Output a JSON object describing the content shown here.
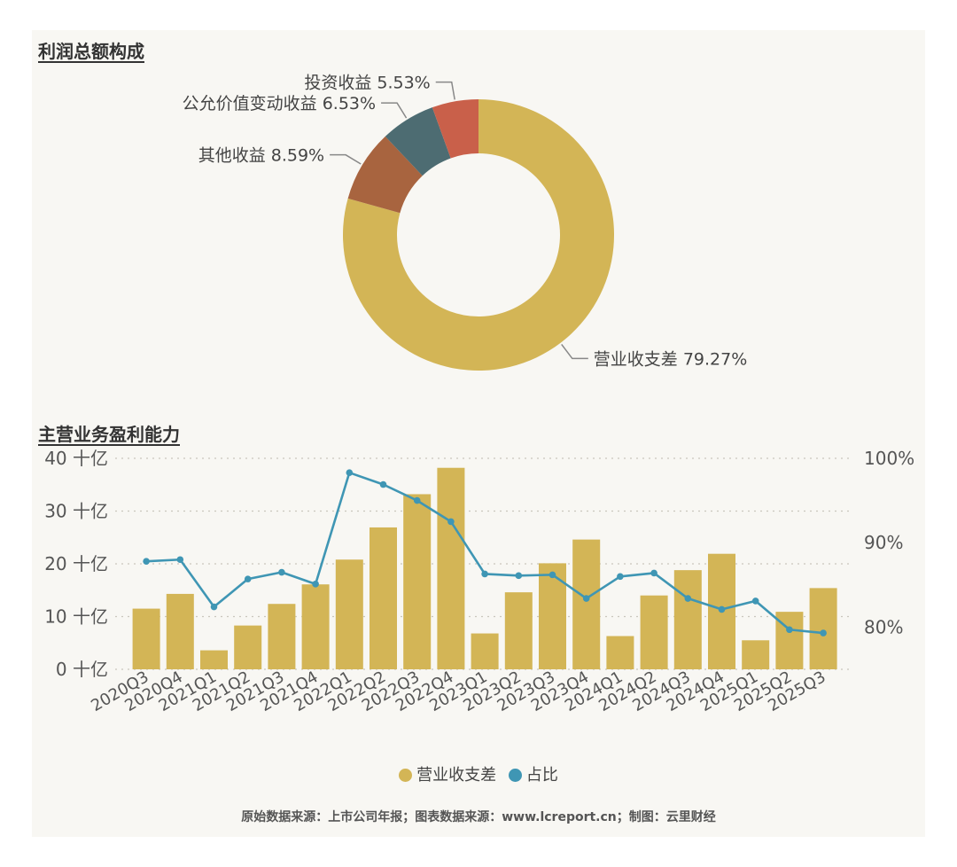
{
  "donut_title": "利润总额构成",
  "bar_title": "主营业务盈利能力",
  "source": "原始数据来源：上市公司年报；图表数据来源：www.lcreport.cn；制图：云里财经",
  "chart_data": [
    {
      "type": "pie",
      "title": "利润总额构成",
      "slices": [
        {
          "label": "营业收支差",
          "value": 79.27,
          "display": "79.27%",
          "color": "#d3b556"
        },
        {
          "label": "其他收益",
          "value": 8.59,
          "display": "8.59%",
          "color": "#a8643f"
        },
        {
          "label": "公允价值变动收益",
          "value": 6.53,
          "display": "6.53%",
          "color": "#4d6c72"
        },
        {
          "label": "投资收益",
          "value": 5.53,
          "display": "5.53%",
          "color": "#c9604a"
        }
      ]
    },
    {
      "type": "bar",
      "title": "主营业务盈利能力",
      "categories": [
        "2020Q3",
        "2020Q4",
        "2021Q1",
        "2021Q2",
        "2021Q3",
        "2021Q4",
        "2022Q1",
        "2022Q2",
        "2022Q3",
        "2022Q4",
        "2023Q1",
        "2023Q2",
        "2023Q3",
        "2023Q4",
        "2024Q1",
        "2024Q2",
        "2024Q3",
        "2024Q4",
        "2025Q1",
        "2025Q2",
        "2025Q3"
      ],
      "left_axis": {
        "ylim": [
          0,
          40
        ],
        "ticks": [
          0,
          10,
          20,
          30,
          40
        ],
        "unit": "十亿"
      },
      "right_axis": {
        "ylim": [
          75,
          100
        ],
        "ticks": [
          80,
          90,
          100
        ],
        "unit": "%"
      },
      "grid": true,
      "legend_position": "bottom",
      "series": [
        {
          "name": "营业收支差",
          "type": "bar",
          "axis": "left",
          "color": "#d3b556",
          "values": [
            11.5,
            14.3,
            3.6,
            8.3,
            12.4,
            16.1,
            20.8,
            26.9,
            33.2,
            38.2,
            6.8,
            14.6,
            20.1,
            24.6,
            6.3,
            14.0,
            18.8,
            21.9,
            5.5,
            10.9,
            15.4
          ]
        },
        {
          "name": "占比",
          "type": "line",
          "axis": "right",
          "color": "#3f96b4",
          "values": [
            87.8,
            88.0,
            82.4,
            85.7,
            86.5,
            85.1,
            98.3,
            96.9,
            95.0,
            92.5,
            86.3,
            86.1,
            86.2,
            83.4,
            86.0,
            86.4,
            83.4,
            82.1,
            83.1,
            79.7,
            79.3
          ]
        }
      ]
    }
  ]
}
